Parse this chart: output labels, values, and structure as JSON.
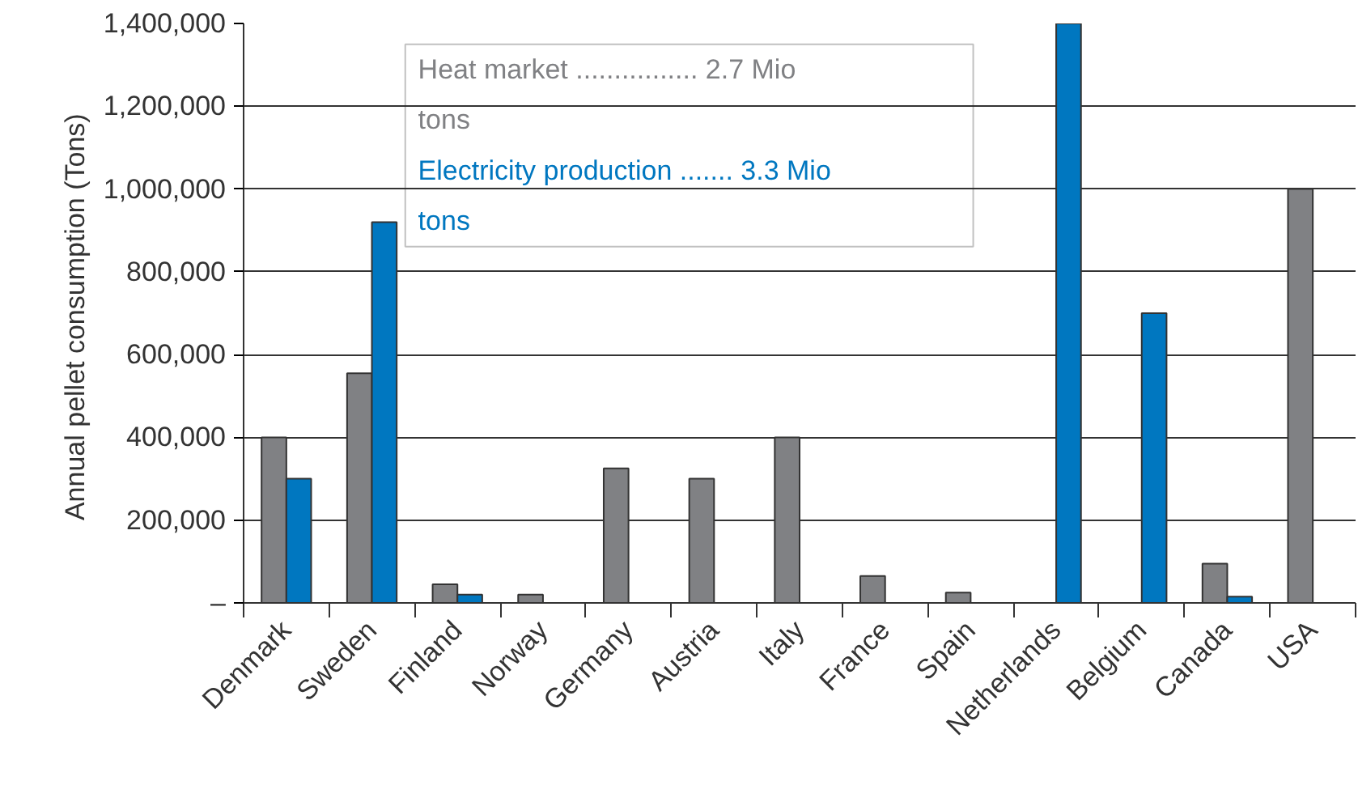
{
  "chart_data": {
    "type": "bar",
    "ylabel": "Annual  pellet consumption (Tons)",
    "categories": [
      "Denmark",
      "Sweden",
      "Finland",
      "Norway",
      "Germany",
      "Austria",
      "Italy",
      "France",
      "Spain",
      "Netherlands",
      "Belgium",
      "Canada",
      "USA"
    ],
    "series": [
      {
        "name": "Heat market ................ 2.7 Mio tons",
        "color": "#808184",
        "values": [
          400000,
          555000,
          45000,
          20000,
          325000,
          300000,
          400000,
          65000,
          25000,
          null,
          null,
          95000,
          1000000
        ]
      },
      {
        "name": "Electricity production ....... 3.3 Mio tons",
        "color": "#0077c0",
        "values": [
          300000,
          920000,
          20000,
          null,
          null,
          null,
          null,
          null,
          null,
          1400000,
          700000,
          15000,
          null
        ]
      }
    ],
    "ylim": [
      0,
      1400000
    ],
    "yticks": [
      {
        "value": 0,
        "label": "–"
      },
      {
        "value": 200000,
        "label": "200,000"
      },
      {
        "value": 400000,
        "label": "400,000"
      },
      {
        "value": 600000,
        "label": "600,000"
      },
      {
        "value": 800000,
        "label": "800,000"
      },
      {
        "value": 1000000,
        "label": "1,000,000"
      },
      {
        "value": 1200000,
        "label": "1,200,000"
      },
      {
        "value": 1400000,
        "label": "1,400,000"
      }
    ],
    "grid": "y",
    "legend": "top"
  }
}
